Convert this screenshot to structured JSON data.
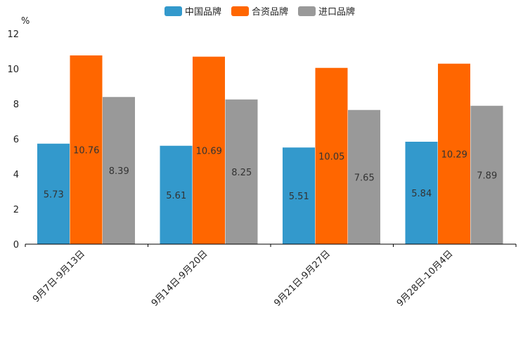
{
  "chart_data": {
    "type": "bar",
    "unit_label": "%",
    "categories": [
      "9月7日-9月13日",
      "9月14日-9月20日",
      "9月21日-9月27日",
      "9月28日-10月4日"
    ],
    "series": [
      {
        "name": "中国品牌",
        "color": "#3399cc",
        "values": [
          5.73,
          5.61,
          5.51,
          5.84
        ]
      },
      {
        "name": "合资品牌",
        "color": "#ff6600",
        "values": [
          10.76,
          10.69,
          10.05,
          10.29
        ]
      },
      {
        "name": "进口品牌",
        "color": "#999999",
        "values": [
          8.39,
          8.25,
          7.65,
          7.89
        ]
      }
    ],
    "ylim": [
      0,
      12
    ],
    "yticks": [
      0,
      2,
      4,
      6,
      8,
      10,
      12
    ],
    "legend_position": "top-center",
    "grid": false
  }
}
